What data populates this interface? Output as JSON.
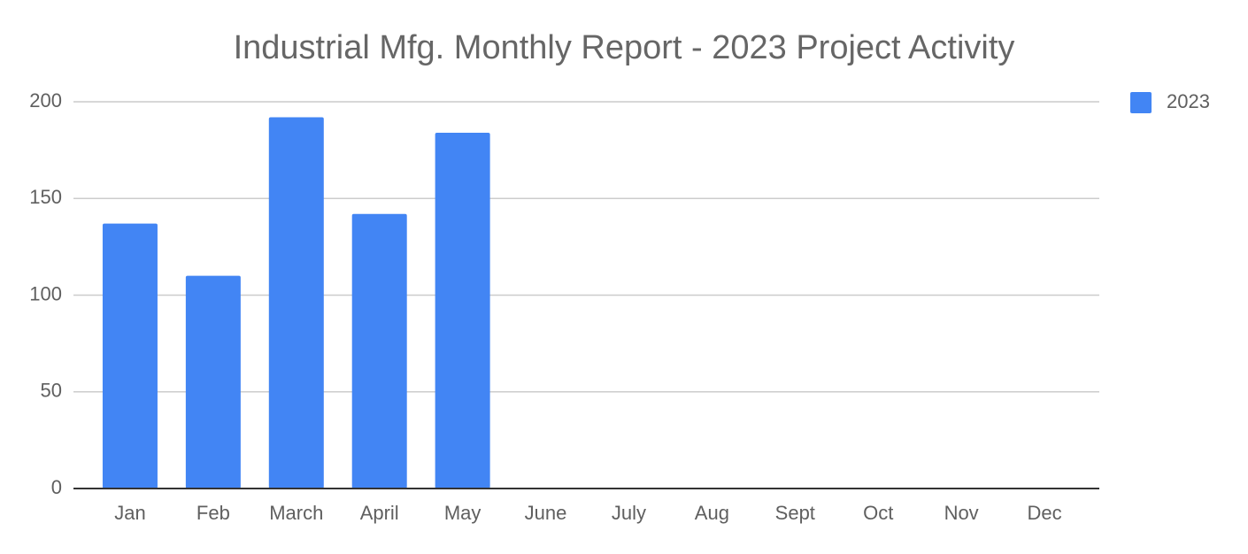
{
  "chart_data": {
    "type": "bar",
    "title": "Industrial Mfg. Monthly Report - 2023 Project Activity",
    "categories": [
      "Jan",
      "Feb",
      "March",
      "April",
      "May",
      "June",
      "July",
      "Aug",
      "Sept",
      "Oct",
      "Nov",
      "Dec"
    ],
    "series": [
      {
        "name": "2023",
        "color": "#4285f4",
        "values": [
          137,
          110,
          192,
          142,
          184,
          null,
          null,
          null,
          null,
          null,
          null,
          null
        ]
      }
    ],
    "ylim": [
      0,
      200
    ],
    "yticks": [
      0,
      50,
      100,
      150,
      200
    ],
    "grid": true,
    "legend": "top-right"
  }
}
